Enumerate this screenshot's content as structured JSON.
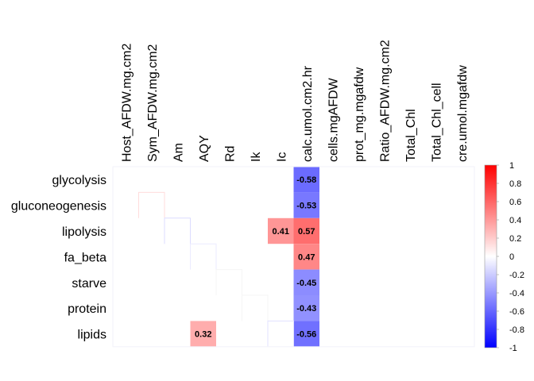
{
  "chart_data": {
    "type": "heatmap",
    "title": "",
    "columns": [
      "Host_AFDW.mg.cm2",
      "Sym_AFDW.mg.cm2",
      "Am",
      "AQY",
      "Rd",
      "Ik",
      "Ic",
      "calc.umol.cm2.hr",
      "cells.mgAFDW",
      "prot_mg.mgafdw",
      "Ratio_AFDW.mg.cm2",
      "Total_Chl",
      "Total_Chl_cell",
      "cre.umol.mgafdw"
    ],
    "rows": [
      "glycolysis",
      "gluconeogenesis",
      "lipolysis",
      "fa_beta",
      "starve",
      "protein",
      "lipids"
    ],
    "values": [
      [
        null,
        null,
        null,
        null,
        null,
        null,
        null,
        -0.58,
        null,
        null,
        null,
        null,
        null,
        null
      ],
      [
        null,
        null,
        null,
        null,
        null,
        null,
        null,
        -0.53,
        null,
        null,
        null,
        null,
        null,
        null
      ],
      [
        null,
        null,
        null,
        null,
        null,
        null,
        0.41,
        0.57,
        null,
        null,
        null,
        null,
        null,
        null
      ],
      [
        null,
        null,
        null,
        null,
        null,
        null,
        null,
        0.47,
        null,
        null,
        null,
        null,
        null,
        null
      ],
      [
        null,
        null,
        null,
        null,
        null,
        null,
        null,
        -0.45,
        null,
        null,
        null,
        null,
        null,
        null
      ],
      [
        null,
        null,
        null,
        null,
        null,
        null,
        null,
        -0.43,
        null,
        null,
        null,
        null,
        null,
        null
      ],
      [
        null,
        null,
        null,
        0.32,
        null,
        null,
        null,
        -0.56,
        null,
        null,
        null,
        null,
        null,
        null
      ]
    ],
    "colorbar": {
      "range": [
        -1,
        1
      ],
      "ticks": [
        "1",
        "0.8",
        "0.6",
        "0.4",
        "0.2",
        "0",
        "-0.2",
        "-0.4",
        "-0.6",
        "-0.8",
        "-1"
      ],
      "low_color": "#0000ff",
      "mid_color": "#ffffff",
      "high_color": "#ff0000"
    }
  }
}
